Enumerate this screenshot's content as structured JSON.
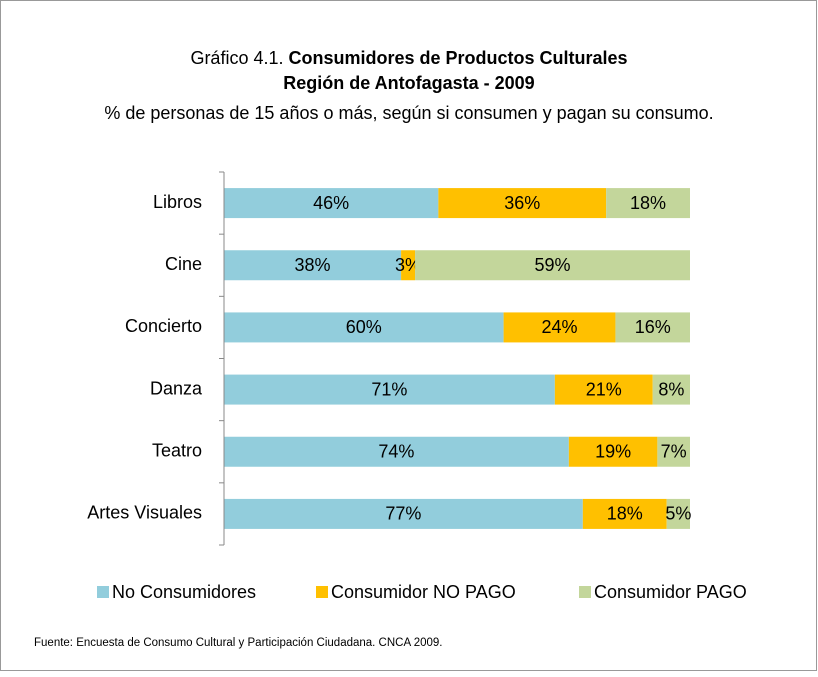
{
  "chart_data": {
    "type": "stacked-bar-horizontal",
    "title_prefix": "Gráfico 4.1.",
    "title": "Consumidores de Productos Culturales",
    "title_line2": "Región de Antofagasta - 2009",
    "subtitle": "% de personas de 15 años o más, según si consumen y pagan su consumo.",
    "categories": [
      "Libros",
      "Cine",
      "Concierto",
      "Danza",
      "Teatro",
      "Artes Visuales"
    ],
    "series": [
      {
        "name": "No Consumidores",
        "color": "#92cddc",
        "values": [
          46,
          38,
          60,
          71,
          74,
          77
        ],
        "value_labels": [
          "46%",
          "38%",
          "60%",
          "71%",
          "74%",
          "77%"
        ]
      },
      {
        "name": "Consumidor NO PAGO",
        "color": "#ffc000",
        "values": [
          36,
          3,
          24,
          21,
          19,
          18
        ],
        "value_labels": [
          "36%",
          "3%",
          "24%",
          "21%",
          "19%",
          "18%"
        ]
      },
      {
        "name": "Consumidor PAGO",
        "color": "#c3d69b",
        "values": [
          18,
          59,
          16,
          8,
          7,
          5
        ],
        "value_labels": [
          "18%",
          "59%",
          "16%",
          "8%",
          "7%",
          "5%"
        ]
      }
    ],
    "xlim": [
      0,
      100
    ],
    "legend": "bottom",
    "source": "Fuente: Encuesta de Consumo Cultural y Participación Ciudadana. CNCA 2009."
  }
}
